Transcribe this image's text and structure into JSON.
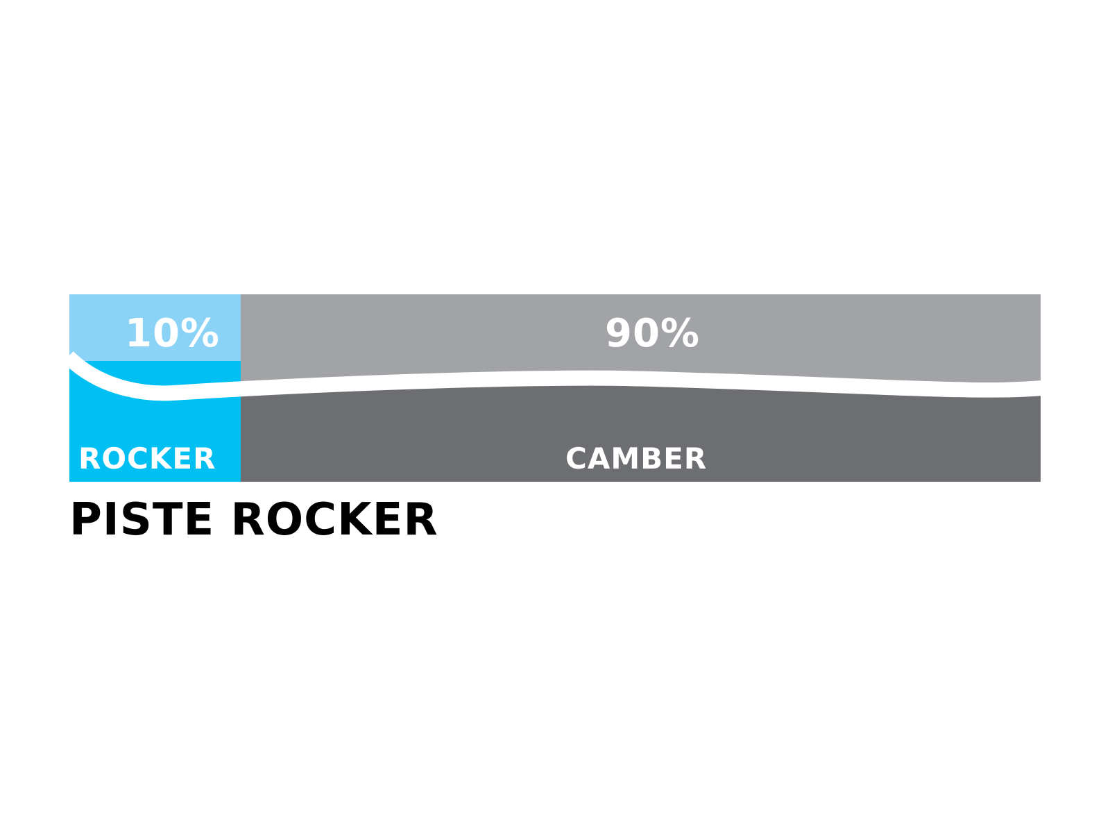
{
  "diagram": {
    "title": "PISTE ROCKER",
    "segments": [
      {
        "name": "rocker",
        "percent_label": "10%",
        "label": "ROCKER",
        "share": 10,
        "color_top": "#8AD3F7",
        "color_bottom": "#00BFF3"
      },
      {
        "name": "camber",
        "percent_label": "90%",
        "label": "CAMBER",
        "share": 90,
        "color_top": "#A2A3A6",
        "color_bottom": "#6D6E71"
      }
    ]
  }
}
